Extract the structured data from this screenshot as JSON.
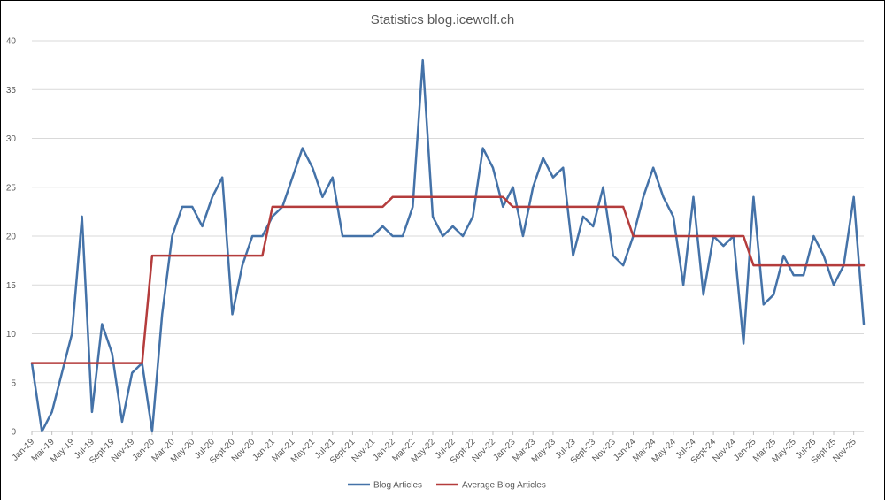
{
  "chart_data": {
    "type": "line",
    "title": "Statistics blog.icewolf.ch",
    "xlabel": "",
    "ylabel": "",
    "ylim": [
      0,
      40
    ],
    "yticks": [
      0,
      5,
      10,
      15,
      20,
      25,
      30,
      35,
      40
    ],
    "grid": true,
    "legend_position": "bottom",
    "categories": [
      "Jan-19",
      "Feb-19",
      "Mar-19",
      "Apr-19",
      "May-19",
      "Jun-19",
      "Jul-19",
      "Aug-19",
      "Sept-19",
      "Oct-19",
      "Nov-19",
      "Dec-19",
      "Jan-20",
      "Feb-20",
      "Mar-20",
      "Apr-20",
      "May-20",
      "Jun-20",
      "Jul-20",
      "Aug-20",
      "Sept-20",
      "Oct-20",
      "Nov-20",
      "Dec-20",
      "Jan-21",
      "Feb-21",
      "Mar-21",
      "Apr-21",
      "May-21",
      "Jun-21",
      "Jul-21",
      "Aug-21",
      "Sept-21",
      "Oct-21",
      "Nov-21",
      "Dec-21",
      "Jan-22",
      "Feb-22",
      "Mar-22",
      "Apr-22",
      "May-22",
      "Jun-22",
      "Jul-22",
      "Aug-22",
      "Sept-22",
      "Oct-22",
      "Nov-22",
      "Dec-22",
      "Jan-23",
      "Feb-23",
      "Mar-23",
      "Apr-23",
      "May-23",
      "Jun-23",
      "Jul-23",
      "Aug-23",
      "Sept-23",
      "Oct-23",
      "Nov-23",
      "Dec-23",
      "Jan-24",
      "Feb-24",
      "Mar-24",
      "Apr-24",
      "May-24",
      "Jun-24",
      "Jul-24",
      "Aug-24",
      "Sept-24",
      "Oct-24",
      "Nov-24",
      "Dec-24",
      "Jan-25",
      "Feb-25",
      "Mar-25",
      "Apr-25",
      "May-25",
      "Jun-25",
      "Jul-25",
      "Aug-25",
      "Sept-25",
      "Oct-25",
      "Nov-25",
      "Dec-25"
    ],
    "tick_labels": [
      "Jan-19",
      "Mar-19",
      "May-19",
      "Jul-19",
      "Sept-19",
      "Nov-19",
      "Jan-20",
      "Mar-20",
      "May-20",
      "Jul-20",
      "Sept-20",
      "Nov-20",
      "Jan-21",
      "Mar-21",
      "May-21",
      "Jul-21",
      "Sept-21",
      "Nov-21",
      "Jan-22",
      "Mar-22",
      "May-22",
      "Jul-22",
      "Sept-22",
      "Nov-22",
      "Jan-23",
      "Mar-23",
      "May-23",
      "Jul-23",
      "Sept-23",
      "Nov-23",
      "Jan-24",
      "Mar-24",
      "May-24",
      "Jul-24",
      "Sept-24",
      "Nov-24",
      "Jan-25",
      "Mar-25",
      "May-25",
      "Jul-25",
      "Sept-25",
      "Nov-25"
    ],
    "series": [
      {
        "name": "Blog Articles",
        "color": "#4472a8",
        "values": [
          7,
          0,
          2,
          6,
          10,
          22,
          2,
          11,
          8,
          1,
          6,
          7,
          0,
          12,
          20,
          23,
          23,
          21,
          24,
          26,
          12,
          17,
          20,
          20,
          22,
          23,
          26,
          29,
          27,
          24,
          26,
          20,
          20,
          20,
          20,
          21,
          20,
          20,
          23,
          38,
          22,
          20,
          21,
          20,
          22,
          29,
          27,
          23,
          25,
          20,
          25,
          28,
          26,
          27,
          18,
          22,
          21,
          25,
          18,
          17,
          20,
          24,
          27,
          24,
          22,
          15,
          24,
          14,
          20,
          19,
          20,
          9,
          24,
          13,
          14,
          18,
          16,
          16,
          20,
          18,
          15,
          17,
          24,
          11
        ]
      },
      {
        "name": "Average Blog Articles",
        "color": "#b43c3c",
        "values": [
          7,
          7,
          7,
          7,
          7,
          7,
          7,
          7,
          7,
          7,
          7,
          7,
          18,
          18,
          18,
          18,
          18,
          18,
          18,
          18,
          18,
          18,
          18,
          18,
          23,
          23,
          23,
          23,
          23,
          23,
          23,
          23,
          23,
          23,
          23,
          23,
          24,
          24,
          24,
          24,
          24,
          24,
          24,
          24,
          24,
          24,
          24,
          24,
          23,
          23,
          23,
          23,
          23,
          23,
          23,
          23,
          23,
          23,
          23,
          23,
          20,
          20,
          20,
          20,
          20,
          20,
          20,
          20,
          20,
          20,
          20,
          20,
          17,
          17,
          17,
          17,
          17,
          17,
          17,
          17,
          17,
          17,
          17,
          17
        ]
      }
    ],
    "gridline_color": "#d9d9d9",
    "axis_color": "#bfbfbf"
  }
}
